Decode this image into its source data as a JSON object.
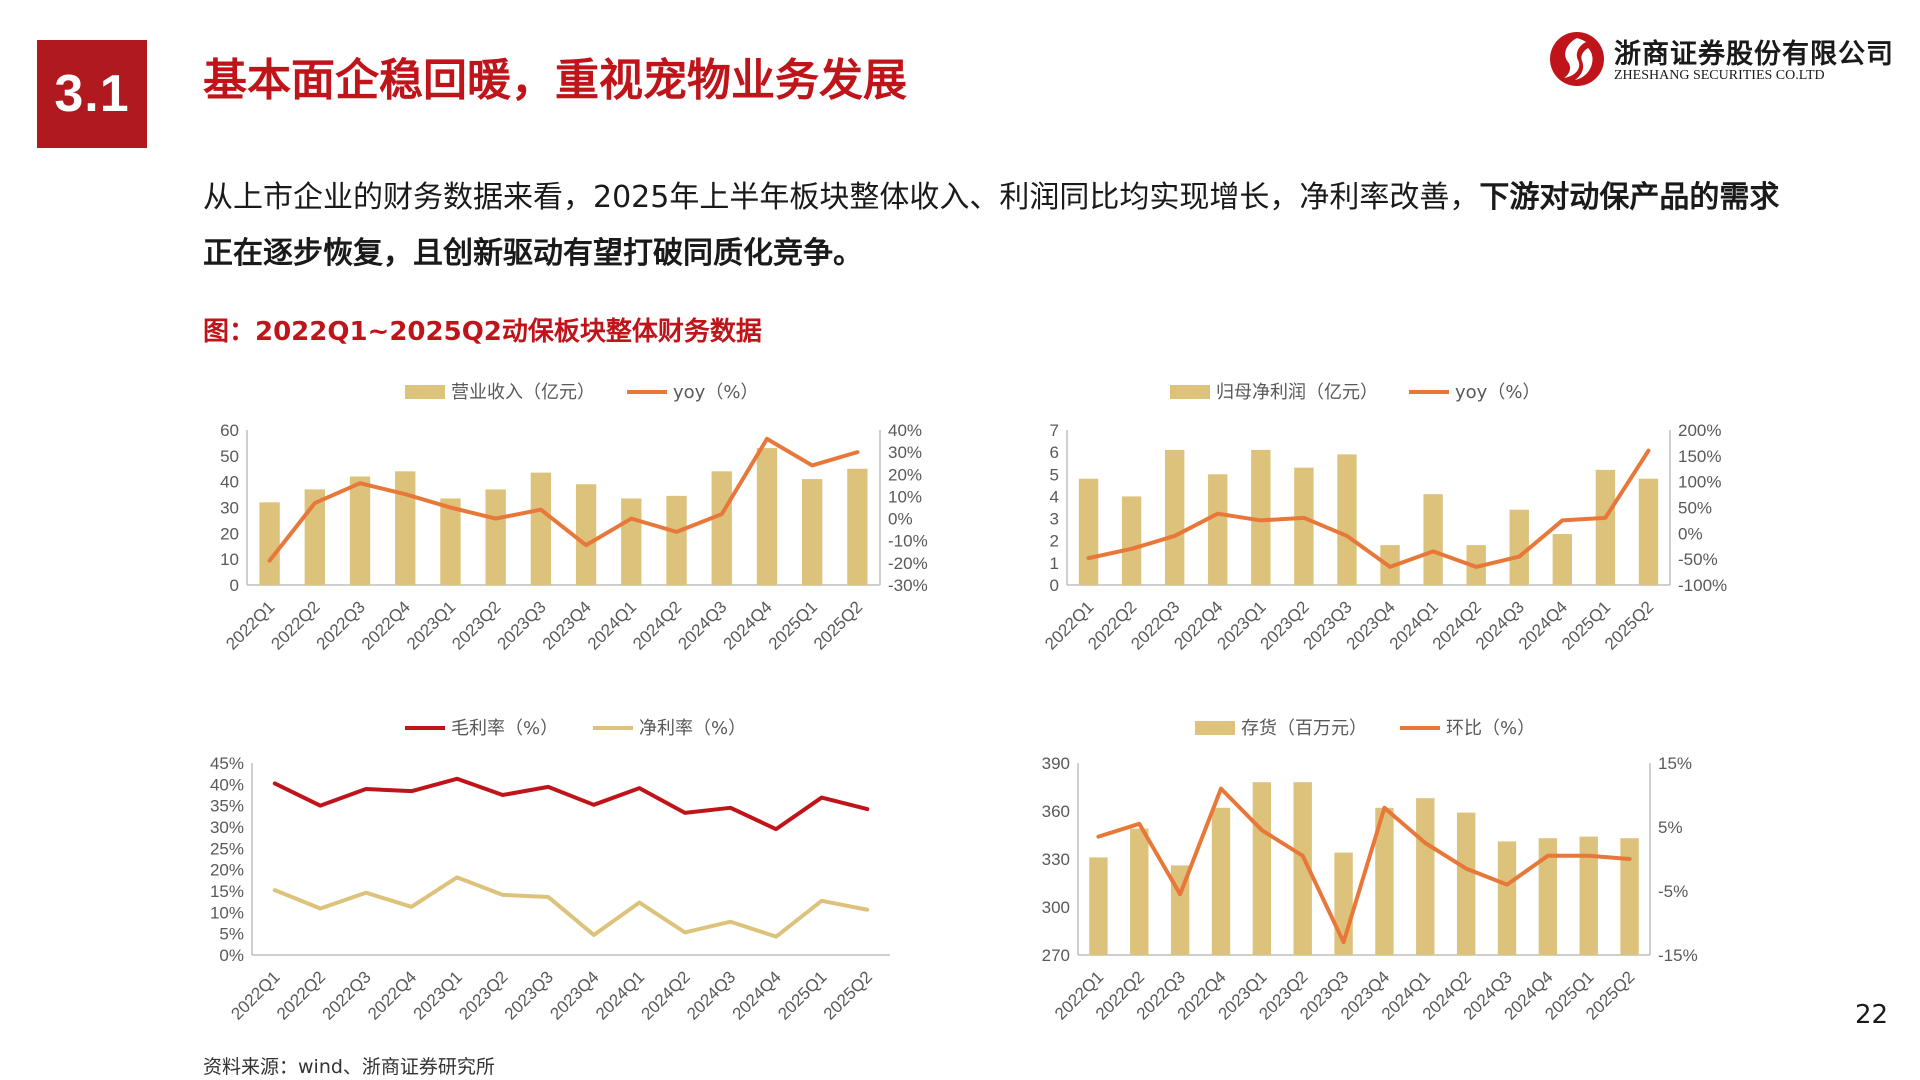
{
  "header": {
    "section_number": "3.1",
    "title": "基本面企稳回暖，重视宠物业务发展"
  },
  "logo": {
    "name_cn": "浙商证券股份有限公司",
    "name_en": "ZHESHANG SECURITIES CO.LTD"
  },
  "body": {
    "text_plain": "从上市企业的财务数据来看，2025年上半年板块整体收入、利润同比均实现增长，净利率改善，",
    "text_bold": "下游对动保产品的需求正在逐步恢复，且创新驱动有望打破同质化竞争。"
  },
  "figure_caption": "图：2022Q1~2025Q2动保板块整体财务数据",
  "source": "资料来源：wind、浙商证券研究所",
  "page_number": "22",
  "colors": {
    "brand_red": "#c0141b",
    "bar_gold": "#dcc27a",
    "line_orange": "#e8773a",
    "line_red": "#c0141b",
    "line_gold": "#dcc27a",
    "axis": "#bfbfbf",
    "tick_text": "#595959"
  },
  "chart_data": [
    {
      "id": "revenue",
      "type": "bar+line",
      "categories": [
        "2022Q1",
        "2022Q2",
        "2022Q3",
        "2022Q4",
        "2023Q1",
        "2023Q2",
        "2023Q3",
        "2023Q4",
        "2024Q1",
        "2024Q2",
        "2024Q3",
        "2024Q4",
        "2025Q1",
        "2025Q2"
      ],
      "series": [
        {
          "name": "营业收入（亿元）",
          "type": "bar",
          "axis": "left",
          "values": [
            32,
            37,
            42,
            44,
            33.5,
            37,
            43.5,
            39,
            33.5,
            34.5,
            44,
            53,
            41,
            45
          ]
        },
        {
          "name": "yoy（%）",
          "type": "line",
          "axis": "right",
          "values": [
            -19,
            7,
            16,
            11,
            5,
            0,
            4,
            -12,
            0,
            -6,
            2,
            36,
            24,
            30
          ]
        }
      ],
      "y_left": {
        "min": 0,
        "max": 60,
        "ticks": [
          "0",
          "10",
          "20",
          "30",
          "40",
          "50",
          "60"
        ]
      },
      "y_right": {
        "min": -30,
        "max": 40,
        "ticks": [
          "-30%",
          "-20%",
          "-10%",
          "0%",
          "10%",
          "20%",
          "30%",
          "40%"
        ]
      }
    },
    {
      "id": "net_profit",
      "type": "bar+line",
      "categories": [
        "2022Q1",
        "2022Q2",
        "2022Q3",
        "2022Q4",
        "2023Q1",
        "2023Q2",
        "2023Q3",
        "2023Q4",
        "2024Q1",
        "2024Q2",
        "2024Q3",
        "2024Q4",
        "2025Q1",
        "2025Q2"
      ],
      "series": [
        {
          "name": "归母净利润（亿元）",
          "type": "bar",
          "axis": "left",
          "values": [
            4.8,
            4.0,
            6.1,
            5.0,
            6.1,
            5.3,
            5.9,
            1.8,
            4.1,
            1.8,
            3.4,
            2.3,
            5.2,
            4.8
          ]
        },
        {
          "name": "yoy（%）",
          "type": "line",
          "axis": "right",
          "values": [
            -48,
            -30,
            -5,
            38,
            25,
            30,
            -5,
            -65,
            -35,
            -65,
            -45,
            25,
            30,
            160
          ]
        }
      ],
      "y_left": {
        "min": 0,
        "max": 7,
        "ticks": [
          "0",
          "1",
          "2",
          "3",
          "4",
          "5",
          "6",
          "7"
        ]
      },
      "y_right": {
        "min": -100,
        "max": 200,
        "ticks": [
          "-100%",
          "-50%",
          "0%",
          "50%",
          "100%",
          "150%",
          "200%"
        ]
      }
    },
    {
      "id": "margins",
      "type": "line",
      "categories": [
        "2022Q1",
        "2022Q2",
        "2022Q3",
        "2022Q4",
        "2023Q1",
        "2023Q2",
        "2023Q3",
        "2023Q4",
        "2024Q1",
        "2024Q2",
        "2024Q3",
        "2024Q4",
        "2025Q1",
        "2025Q2"
      ],
      "series": [
        {
          "name": "毛利率（%）",
          "values": [
            40.2,
            35.0,
            38.9,
            38.4,
            41.3,
            37.5,
            39.4,
            35.2,
            39.1,
            33.3,
            34.5,
            29.5,
            36.9,
            34.2
          ]
        },
        {
          "name": "净利率（%）",
          "values": [
            15.2,
            10.9,
            14.6,
            11.3,
            18.2,
            14.1,
            13.6,
            4.7,
            12.3,
            5.3,
            7.8,
            4.3,
            12.7,
            10.6
          ]
        }
      ],
      "y": {
        "min": 0,
        "max": 45,
        "ticks": [
          "0%",
          "5%",
          "10%",
          "15%",
          "20%",
          "25%",
          "30%",
          "35%",
          "40%",
          "45%"
        ]
      }
    },
    {
      "id": "inventory",
      "type": "bar+line",
      "categories": [
        "2022Q1",
        "2022Q2",
        "2022Q3",
        "2022Q4",
        "2023Q1",
        "2023Q2",
        "2023Q3",
        "2023Q4",
        "2024Q1",
        "2024Q2",
        "2024Q3",
        "2024Q4",
        "2025Q1",
        "2025Q2"
      ],
      "series": [
        {
          "name": "存货（百万元）",
          "type": "bar",
          "axis": "left",
          "values": [
            331,
            349,
            326,
            362,
            378,
            378,
            334,
            362,
            368,
            359,
            341,
            343,
            344,
            343
          ]
        },
        {
          "name": "环比（%）",
          "type": "line",
          "axis": "right",
          "values": [
            3.5,
            5.5,
            -5.5,
            11,
            4.5,
            0.5,
            -13,
            8,
            2.5,
            -1.5,
            -4,
            0.5,
            0.5,
            0
          ]
        }
      ],
      "y_left": {
        "min": 270,
        "max": 390,
        "ticks": [
          "270",
          "300",
          "330",
          "360",
          "390"
        ]
      },
      "y_right": {
        "min": -15,
        "max": 15,
        "ticks": [
          "-15%",
          "-5%",
          "5%",
          "15%"
        ]
      }
    }
  ]
}
